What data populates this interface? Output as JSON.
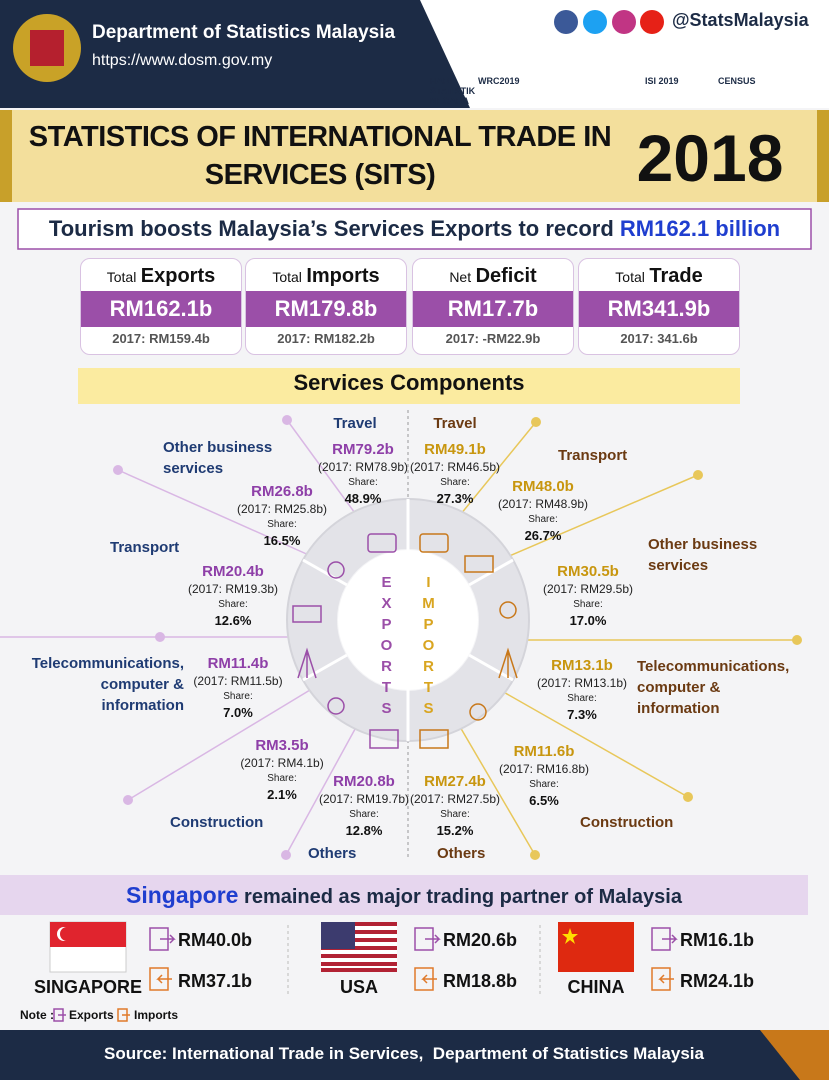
{
  "header": {
    "organization": "Department of Statistics Malaysia",
    "url": "https://www.dosm.gov.my",
    "social": "@StatsMalaysia",
    "logos": [
      "HARI STATISTIK NEGARA",
      "WRC2019",
      "ISI 2019",
      "CENSUS"
    ]
  },
  "title": {
    "text": "STATISTICS OF INTERNATIONAL TRADE IN SERVICES (SITS)",
    "year": "2018"
  },
  "headline": {
    "text": "Tourism boosts Malaysia’s Services Exports to record",
    "highlight": "RM162.1 billion"
  },
  "cards": [
    {
      "prefix": "Total",
      "label": "Exports",
      "value": "RM162.1b",
      "previous": "2017: RM159.4b"
    },
    {
      "prefix": "Total",
      "label": "Imports",
      "value": "RM179.8b",
      "previous": "2017: RM182.2b"
    },
    {
      "prefix": "Net",
      "label": "Deficit",
      "value": "RM17.7b",
      "previous": "2017: -RM22.9b"
    },
    {
      "prefix": "Total",
      "label": "Trade",
      "value": "RM341.9b",
      "previous": "2017: 341.6b"
    }
  ],
  "components": {
    "title": "Services Components",
    "exports_label": "EXPORTS",
    "imports_label": "IMPORTS",
    "share_label": "Share:",
    "exports": [
      {
        "name": "Travel",
        "value": "RM79.2b",
        "previous": "(2017: RM78.9b)",
        "share": "48.9%"
      },
      {
        "name": "Other business services",
        "value": "RM26.8b",
        "previous": "(2017: RM25.8b)",
        "share": "16.5%"
      },
      {
        "name": "Transport",
        "value": "RM20.4b",
        "previous": "(2017: RM19.3b)",
        "share": "12.6%"
      },
      {
        "name": "Telecommunications, computer & information",
        "value": "RM11.4b",
        "previous": "(2017: RM11.5b)",
        "share": "7.0%"
      },
      {
        "name": "Construction",
        "value": "RM3.5b",
        "previous": "(2017: RM4.1b)",
        "share": "2.1%"
      },
      {
        "name": "Others",
        "value": "RM20.8b",
        "previous": "(2017: RM19.7b)",
        "share": "12.8%"
      }
    ],
    "imports": [
      {
        "name": "Travel",
        "value": "RM49.1b",
        "previous": "(2017: RM46.5b)",
        "share": "27.3%"
      },
      {
        "name": "Transport",
        "value": "RM48.0b",
        "previous": "(2017: RM48.9b)",
        "share": "26.7%"
      },
      {
        "name": "Other business services",
        "value": "RM30.5b",
        "previous": "(2017: RM29.5b)",
        "share": "17.0%"
      },
      {
        "name": "Telecommunications, computer & information",
        "value": "RM13.1b",
        "previous": "(2017: RM13.1b)",
        "share": "7.3%"
      },
      {
        "name": "Construction",
        "value": "RM11.6b",
        "previous": "(2017: RM16.8b)",
        "share": "6.5%"
      },
      {
        "name": "Others",
        "value": "RM27.4b",
        "previous": "(2017: RM27.5b)",
        "share": "15.2%"
      }
    ]
  },
  "partners": {
    "highlight": "Singapore",
    "text": "remained as major trading partner of Malaysia",
    "countries": [
      {
        "name": "SINGAPORE",
        "exports": "RM40.0b",
        "imports": "RM37.1b"
      },
      {
        "name": "USA",
        "exports": "RM20.6b",
        "imports": "RM18.8b"
      },
      {
        "name": "CHINA",
        "exports": "RM16.1b",
        "imports": "RM24.1b"
      }
    ]
  },
  "note": {
    "label": "Note :",
    "exports": "Exports",
    "imports": "Imports"
  },
  "footer": {
    "source": "Source: International Trade in Services,  Department of Statistics Malaysia"
  }
}
